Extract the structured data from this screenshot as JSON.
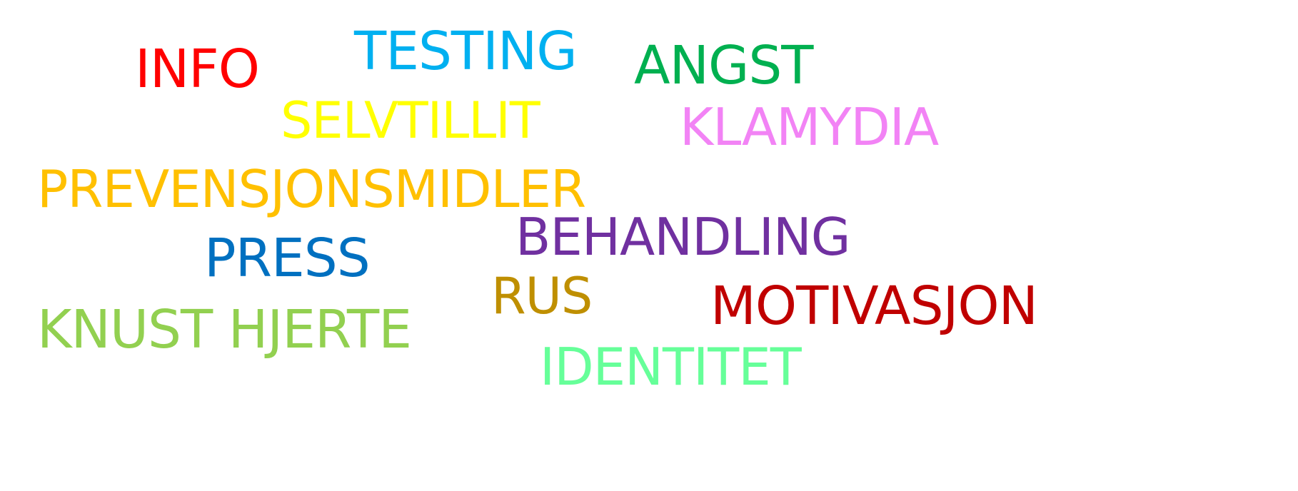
{
  "words": [
    {
      "text": "INFO",
      "color": "#ff0000"
    },
    {
      "text": "TESTING",
      "color": "#00b0f0"
    },
    {
      "text": "ANGST",
      "color": "#00b050"
    },
    {
      "text": "SELVTILLIT",
      "color": "#ffff00"
    },
    {
      "text": "KLAMYDIA",
      "color": "#f283f5"
    },
    {
      "text": "PREVENSJONSMIDLER",
      "color": "#ffc000"
    },
    {
      "text": "BEHANDLING",
      "color": "#7030a0"
    },
    {
      "text": "PRESS",
      "color": "#0070c0"
    },
    {
      "text": "RUS",
      "color": "#bf8f00"
    },
    {
      "text": "MOTIVASJON",
      "color": "#c00000"
    },
    {
      "text": "KNUST HJERTE",
      "color": "#92d050"
    },
    {
      "text": "IDENTITET",
      "color": "#66ff99"
    }
  ]
}
